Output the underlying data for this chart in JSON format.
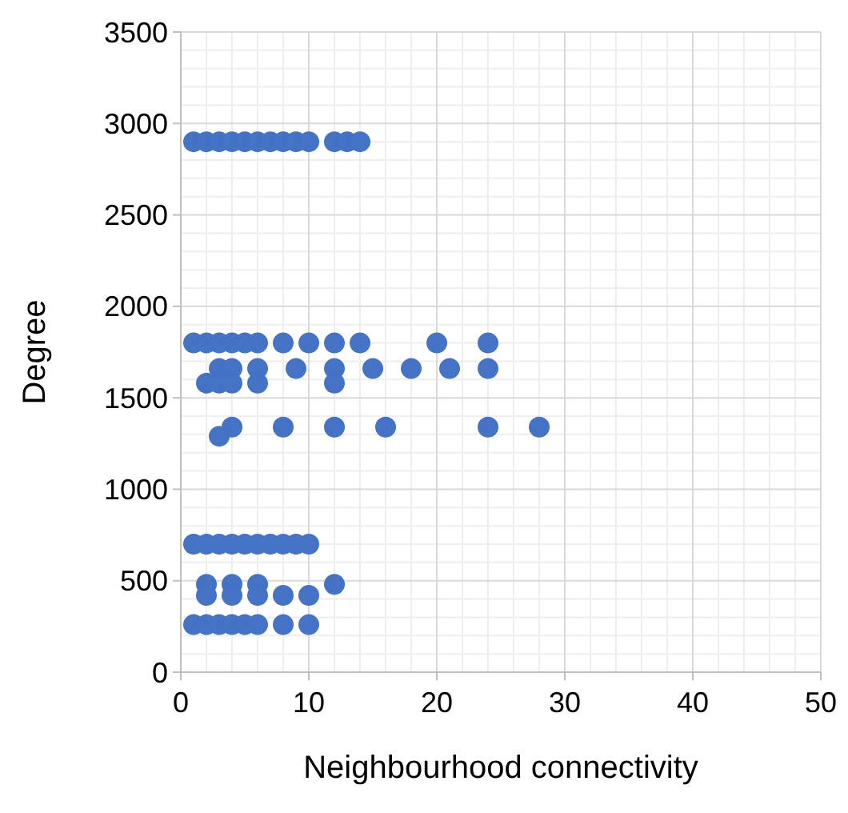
{
  "chart_data": {
    "type": "scatter",
    "xlabel": "Neighbourhood connectivity",
    "ylabel": "Degree",
    "marker": "circle",
    "grid": true,
    "xlim": [
      0,
      50
    ],
    "xticks": [
      0,
      10,
      20,
      30,
      40,
      50
    ],
    "ylim": [
      0,
      3500
    ],
    "yticks": [
      0,
      500,
      1000,
      1500,
      2000,
      2500,
      3000,
      3500
    ],
    "series": [
      {
        "color": "#4472c4",
        "x": [
          1,
          2,
          3,
          4,
          5,
          6,
          7,
          8,
          9,
          10,
          12,
          13,
          14,
          1,
          2,
          3,
          4,
          5,
          6,
          8,
          10,
          12,
          14,
          20,
          24,
          3,
          4,
          6,
          9,
          12,
          15,
          18,
          21,
          24,
          2,
          3,
          4,
          6,
          12,
          4,
          8,
          12,
          16,
          24,
          28,
          3,
          1,
          2,
          3,
          4,
          5,
          6,
          7,
          8,
          9,
          10,
          2,
          4,
          6,
          12,
          2,
          4,
          6,
          8,
          10,
          1,
          2,
          3,
          4,
          5,
          6,
          8,
          10
        ],
        "values": [
          2900,
          2900,
          2900,
          2900,
          2900,
          2900,
          2900,
          2900,
          2900,
          2900,
          2900,
          2900,
          2900,
          1800,
          1800,
          1800,
          1800,
          1800,
          1800,
          1800,
          1800,
          1800,
          1800,
          1800,
          1800,
          1660,
          1660,
          1660,
          1660,
          1660,
          1660,
          1660,
          1660,
          1660,
          1580,
          1580,
          1580,
          1580,
          1580,
          1340,
          1340,
          1340,
          1340,
          1340,
          1340,
          1290,
          700,
          700,
          700,
          700,
          700,
          700,
          700,
          700,
          700,
          700,
          480,
          480,
          480,
          480,
          420,
          420,
          420,
          420,
          420,
          260,
          260,
          260,
          260,
          260,
          260,
          260,
          260
        ]
      }
    ]
  }
}
